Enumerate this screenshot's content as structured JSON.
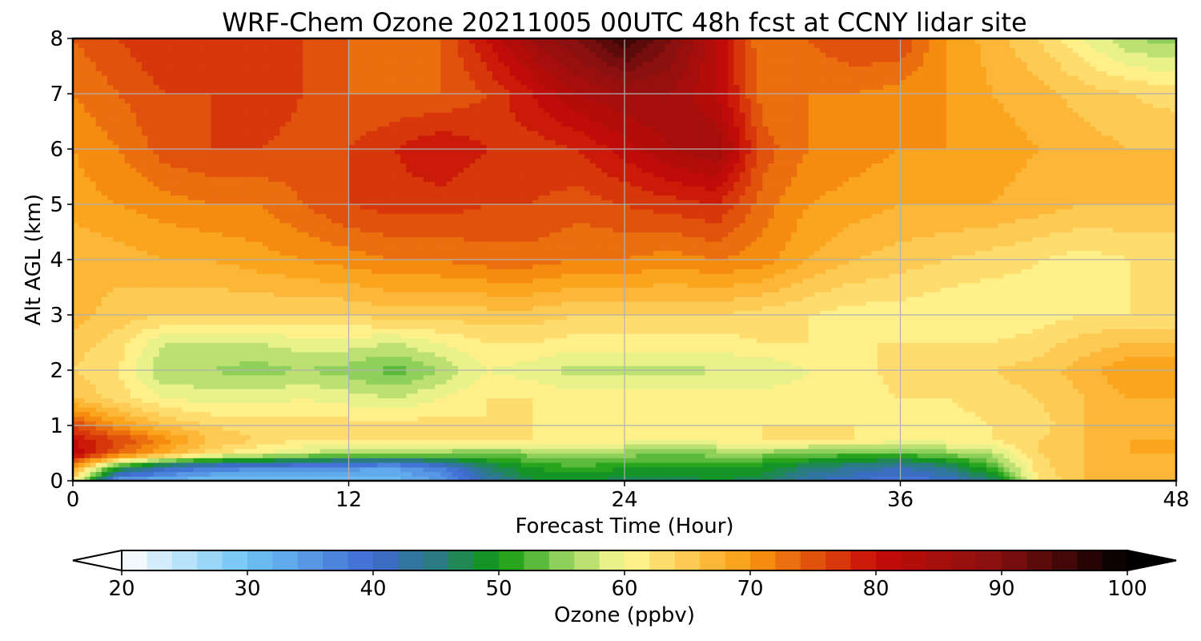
{
  "chart_data": {
    "type": "heatmap",
    "title": "WRF-Chem Ozone  20211005 00UTC 48h fcst at CCNY lidar site",
    "xlabel": "Forecast Time (Hour)",
    "ylabel": "Alt AGL (km)",
    "xlim": [
      0,
      48
    ],
    "ylim": [
      0,
      8
    ],
    "x_ticks": [
      "0",
      "12",
      "24",
      "36",
      "48"
    ],
    "y_ticks": [
      "0",
      "1",
      "2",
      "3",
      "4",
      "5",
      "6",
      "7",
      "8"
    ],
    "grid": true,
    "colorbar": {
      "label": "Ozone  (ppbv)",
      "range": [
        20,
        100
      ],
      "ticks": [
        "20",
        "30",
        "40",
        "50",
        "60",
        "70",
        "80",
        "90",
        "100"
      ],
      "extend": "both",
      "orientation": "horizontal-bottom",
      "colors": [
        {
          "v": 20,
          "c": "#ffffff"
        },
        {
          "v": 30,
          "c": "#6ec4f5"
        },
        {
          "v": 40,
          "c": "#3f6ad2"
        },
        {
          "v": 45,
          "c": "#2a7c82"
        },
        {
          "v": 50,
          "c": "#0e9a0e"
        },
        {
          "v": 55,
          "c": "#8fd05a"
        },
        {
          "v": 60,
          "c": "#fffa96"
        },
        {
          "v": 70,
          "c": "#fb9a10"
        },
        {
          "v": 80,
          "c": "#c70c08"
        },
        {
          "v": 90,
          "c": "#841010"
        },
        {
          "v": 100,
          "c": "#000000"
        }
      ]
    },
    "x": [
      0,
      2,
      4,
      6,
      8,
      10,
      12,
      14,
      16,
      18,
      20,
      22,
      24,
      26,
      28,
      30,
      32,
      34,
      36,
      38,
      40,
      42,
      44,
      46,
      48
    ],
    "y": [
      0,
      0.25,
      0.5,
      0.75,
      1,
      1.5,
      2,
      2.5,
      3,
      4,
      5,
      6,
      7,
      8
    ],
    "z": [
      [
        62,
        33,
        31,
        30,
        29,
        29,
        30,
        31,
        34,
        42,
        48,
        48,
        47,
        47,
        48,
        47,
        42,
        40,
        38,
        40,
        46,
        62,
        66,
        66,
        66
      ],
      [
        70,
        50,
        42,
        38,
        37,
        36,
        35,
        34,
        38,
        46,
        50,
        52,
        50,
        50,
        50,
        49,
        46,
        44,
        42,
        45,
        52,
        63,
        66,
        66,
        66
      ],
      [
        82,
        74,
        68,
        63,
        60,
        58,
        56,
        56,
        55,
        54,
        55,
        56,
        55,
        54,
        55,
        55,
        54,
        53,
        53,
        55,
        57,
        64,
        66,
        68,
        68
      ],
      [
        80,
        76,
        71,
        66,
        64,
        62,
        62,
        62,
        62,
        62,
        62,
        61,
        61,
        60,
        61,
        62,
        62,
        62,
        61,
        61,
        62,
        64,
        66,
        68,
        68
      ],
      [
        76,
        70,
        66,
        64,
        63,
        63,
        63,
        63,
        63,
        62,
        62,
        62,
        62,
        62,
        62,
        62,
        62,
        62,
        61,
        61,
        62,
        63,
        66,
        67,
        67
      ],
      [
        66,
        63,
        60,
        59,
        59,
        60,
        59,
        58,
        60,
        62,
        62,
        61,
        61,
        61,
        61,
        61,
        61,
        61,
        62,
        62,
        63,
        64,
        66,
        68,
        68
      ],
      [
        64,
        62,
        56,
        56,
        55,
        56,
        55,
        53,
        56,
        60,
        59,
        57,
        57,
        57,
        58,
        58,
        60,
        61,
        63,
        63,
        64,
        65,
        67,
        70,
        70
      ],
      [
        65,
        63,
        58,
        58,
        58,
        59,
        59,
        58,
        60,
        62,
        62,
        61,
        61,
        61,
        61,
        62,
        62,
        62,
        62,
        62,
        62,
        63,
        65,
        66,
        66
      ],
      [
        67,
        65,
        64,
        64,
        64,
        64,
        64,
        65,
        65,
        65,
        65,
        64,
        64,
        64,
        64,
        63,
        62,
        61,
        61,
        60,
        60,
        61,
        62,
        62,
        62
      ],
      [
        66,
        67,
        68,
        68,
        69,
        70,
        71,
        72,
        72,
        73,
        73,
        72,
        72,
        71,
        72,
        71,
        68,
        66,
        65,
        64,
        63,
        62,
        61,
        62,
        62
      ],
      [
        69,
        70,
        71,
        72,
        72,
        74,
        76,
        77,
        77,
        76,
        76,
        75,
        76,
        77,
        78,
        73,
        70,
        69,
        68,
        68,
        68,
        67,
        66,
        66,
        66
      ],
      [
        70,
        72,
        75,
        76,
        76,
        75,
        76,
        78,
        80,
        78,
        77,
        78,
        81,
        84,
        86,
        75,
        72,
        71,
        70,
        70,
        69,
        68,
        67,
        66,
        66
      ],
      [
        72,
        74,
        76,
        76,
        78,
        76,
        74,
        74,
        74,
        76,
        80,
        84,
        86,
        86,
        82,
        73,
        72,
        72,
        71,
        70,
        68,
        67,
        65,
        64,
        63
      ],
      [
        74,
        76,
        78,
        78,
        77,
        76,
        74,
        73,
        74,
        80,
        86,
        90,
        96,
        90,
        82,
        72,
        74,
        76,
        76,
        70,
        67,
        64,
        60,
        56,
        55
      ]
    ]
  }
}
